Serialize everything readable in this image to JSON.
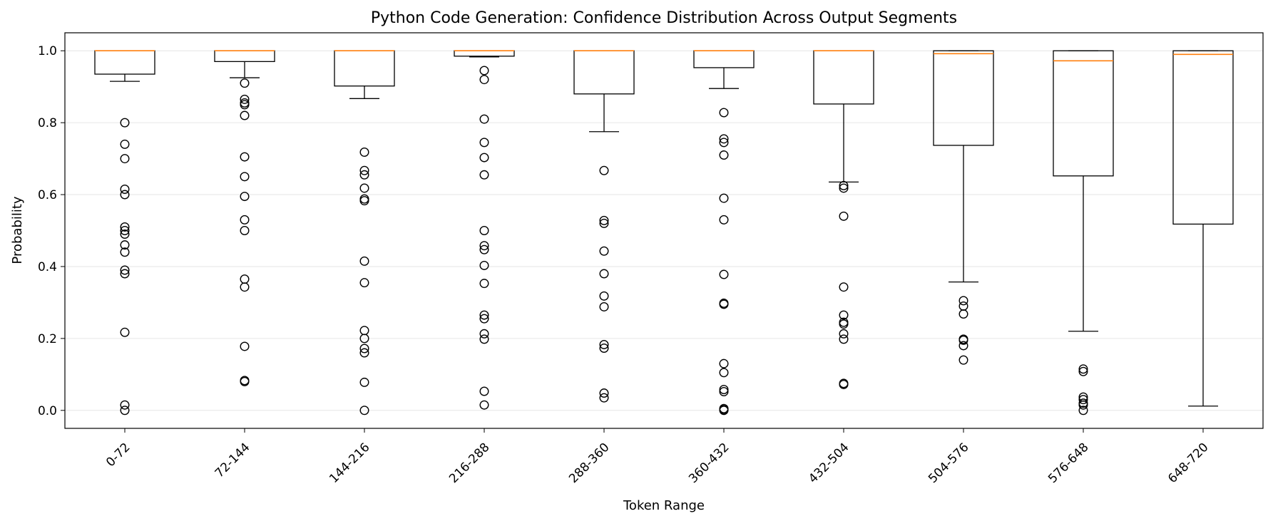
{
  "chart_data": {
    "type": "boxplot",
    "title": "Python Code Generation: Confidence Distribution Across Output Segments",
    "xlabel": "Token Range",
    "ylabel": "Probability",
    "ylim": [
      -0.05,
      1.05
    ],
    "yticks": [
      "0.0",
      "0.2",
      "0.4",
      "0.6",
      "0.8",
      "1.0"
    ],
    "grid": "horizontal",
    "colors": {
      "box": "#000000",
      "median": "#ff7f0e",
      "grid": "#e6e6e6"
    },
    "categories": [
      "0-72",
      "72-144",
      "144-216",
      "216-288",
      "288-360",
      "360-432",
      "432-504",
      "504-576",
      "576-648",
      "648-720"
    ],
    "boxes": [
      {
        "label": "0-72",
        "whislo": 0.915,
        "q1": 0.935,
        "med": 1.0,
        "q3": 1.0,
        "whishi": 1.0,
        "fliers": [
          0.8,
          0.74,
          0.7,
          0.615,
          0.6,
          0.51,
          0.5,
          0.49,
          0.46,
          0.44,
          0.39,
          0.38,
          0.217,
          0.015,
          0.0
        ]
      },
      {
        "label": "72-144",
        "whislo": 0.925,
        "q1": 0.97,
        "med": 1.0,
        "q3": 1.0,
        "whishi": 1.0,
        "fliers": [
          0.91,
          0.865,
          0.855,
          0.85,
          0.82,
          0.705,
          0.65,
          0.595,
          0.53,
          0.5,
          0.365,
          0.343,
          0.178,
          0.083,
          0.08
        ]
      },
      {
        "label": "144-216",
        "whislo": 0.867,
        "q1": 0.902,
        "med": 1.0,
        "q3": 1.0,
        "whishi": 1.0,
        "fliers": [
          0.718,
          0.667,
          0.655,
          0.618,
          0.588,
          0.583,
          0.415,
          0.355,
          0.222,
          0.2,
          0.172,
          0.16,
          0.078,
          0.0
        ]
      },
      {
        "label": "216-288",
        "whislo": 0.983,
        "q1": 0.985,
        "med": 1.0,
        "q3": 1.0,
        "whishi": 1.0,
        "fliers": [
          0.945,
          0.92,
          0.81,
          0.745,
          0.703,
          0.655,
          0.5,
          0.458,
          0.447,
          0.403,
          0.353,
          0.265,
          0.255,
          0.213,
          0.198,
          0.053,
          0.015
        ]
      },
      {
        "label": "288-360",
        "whislo": 0.775,
        "q1": 0.88,
        "med": 1.0,
        "q3": 1.0,
        "whishi": 1.0,
        "fliers": [
          0.667,
          0.528,
          0.52,
          0.443,
          0.38,
          0.318,
          0.288,
          0.183,
          0.173,
          0.048,
          0.035
        ]
      },
      {
        "label": "360-432",
        "whislo": 0.895,
        "q1": 0.953,
        "med": 1.0,
        "q3": 1.0,
        "whishi": 1.0,
        "fliers": [
          0.828,
          0.755,
          0.745,
          0.71,
          0.59,
          0.53,
          0.378,
          0.298,
          0.295,
          0.13,
          0.105,
          0.058,
          0.052,
          0.005,
          0.002,
          0.0
        ]
      },
      {
        "label": "432-504",
        "whislo": 0.635,
        "q1": 0.852,
        "med": 1.0,
        "q3": 1.0,
        "whishi": 1.0,
        "fliers": [
          0.625,
          0.618,
          0.54,
          0.343,
          0.265,
          0.245,
          0.24,
          0.213,
          0.198,
          0.075,
          0.072
        ]
      },
      {
        "label": "504-576",
        "whislo": 0.357,
        "q1": 0.737,
        "med": 0.992,
        "q3": 1.0,
        "whishi": 1.0,
        "fliers": [
          0.305,
          0.29,
          0.268,
          0.198,
          0.195,
          0.18,
          0.14
        ]
      },
      {
        "label": "576-648",
        "whislo": 0.22,
        "q1": 0.652,
        "med": 0.972,
        "q3": 1.0,
        "whishi": 1.0,
        "fliers": [
          0.115,
          0.108,
          0.037,
          0.03,
          0.02,
          0.015,
          0.0
        ]
      },
      {
        "label": "648-720",
        "whislo": 0.012,
        "q1": 0.518,
        "med": 0.99,
        "q3": 1.0,
        "whishi": 1.0,
        "fliers": []
      }
    ]
  }
}
